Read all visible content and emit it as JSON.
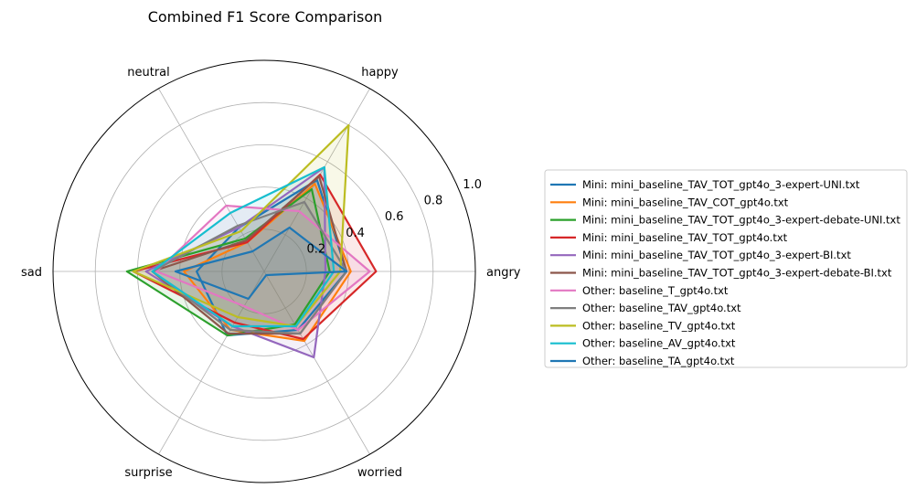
{
  "chart_data": {
    "type": "radar",
    "title": "Combined F1 Score Comparison",
    "categories": [
      "angry",
      "happy",
      "neutral",
      "sad",
      "surprise",
      "worried"
    ],
    "rlim": [
      0,
      1.0
    ],
    "radial_ticks": [
      0.2,
      0.4,
      0.6,
      0.8,
      1.0
    ],
    "radial_tick_labels": [
      "0.2",
      "0.4",
      "0.6",
      "0.8",
      "1.0"
    ],
    "grid": true,
    "legend_position": "right",
    "series": [
      {
        "name": "Mini: mini_baseline_TAV_TOT_gpt4o_3-expert-UNI.txt",
        "color": "#1f77b4",
        "values": [
          0.39,
          0.5,
          0.24,
          0.32,
          0.35,
          0.32
        ]
      },
      {
        "name": "Mini: mini_baseline_TAV_COT_gpt4o.txt",
        "color": "#ff7f0e",
        "values": [
          0.41,
          0.48,
          0.16,
          0.38,
          0.32,
          0.38
        ]
      },
      {
        "name": "Mini: mini_baseline_TAV_TOT_gpt4o_3-expert-debate-UNI.txt",
        "color": "#2ca02c",
        "values": [
          0.31,
          0.45,
          0.18,
          0.65,
          0.35,
          0.29
        ]
      },
      {
        "name": "Mini: mini_baseline_TAV_TOT_gpt4o.txt",
        "color": "#d62728",
        "values": [
          0.53,
          0.53,
          0.16,
          0.62,
          0.28,
          0.37
        ]
      },
      {
        "name": "Mini: mini_baseline_TAV_TOT_gpt4o_3-expert-BI.txt",
        "color": "#9467bd",
        "values": [
          0.29,
          0.57,
          0.24,
          0.56,
          0.3,
          0.47
        ]
      },
      {
        "name": "Mini: mini_baseline_TAV_TOT_gpt4o_3-expert-debate-BI.txt",
        "color": "#8c564b",
        "values": [
          0.39,
          0.52,
          0.17,
          0.53,
          0.34,
          0.34
        ]
      },
      {
        "name": "Other: baseline_T_gpt4o.txt",
        "color": "#e377c2",
        "values": [
          0.5,
          0.33,
          0.36,
          0.51,
          0.19,
          0.32
        ]
      },
      {
        "name": "Other: baseline_TAV_gpt4o.txt",
        "color": "#7f7f7f",
        "values": [
          0.39,
          0.38,
          0.25,
          0.53,
          0.32,
          0.34
        ]
      },
      {
        "name": "Other: baseline_TV_gpt4o.txt",
        "color": "#bcbd22",
        "values": [
          0.36,
          0.8,
          0.22,
          0.62,
          0.25,
          0.3
        ]
      },
      {
        "name": "Other: baseline_AV_gpt4o.txt",
        "color": "#17becf",
        "values": [
          0.33,
          0.57,
          0.32,
          0.53,
          0.3,
          0.3
        ]
      },
      {
        "name": "Other: baseline_TA_gpt4o.txt",
        "color": "#1f77b4",
        "values": [
          0.39,
          0.24,
          0.11,
          0.42,
          0.15,
          0.02
        ]
      }
    ]
  }
}
